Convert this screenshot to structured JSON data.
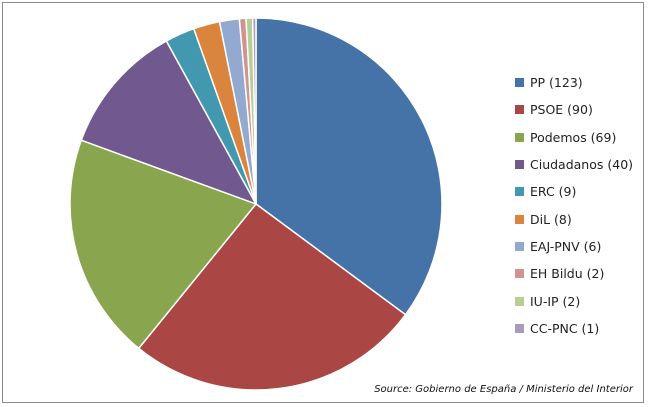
{
  "chart_data": {
    "type": "pie",
    "title": "",
    "categories": [
      "PP",
      "PSOE",
      "Podemos",
      "Ciudadanos",
      "ERC",
      "DiL",
      "EAJ-PNV",
      "EH Bildu",
      "IU-IP",
      "CC-PNC"
    ],
    "values": [
      123,
      90,
      69,
      40,
      9,
      8,
      6,
      2,
      2,
      1
    ],
    "legend_labels": [
      "PP (123)",
      "PSOE (90)",
      "Podemos (69)",
      "Ciudadanos (40)",
      "ERC (9)",
      "DiL (8)",
      "EAJ-PNV (6)",
      "EH Bildu (2)",
      "IU-IP (2)",
      "CC-PNC (1)"
    ],
    "colors": [
      "#4572A7",
      "#AA4643",
      "#89A54E",
      "#71588F",
      "#4198AF",
      "#DB843D",
      "#93A9CF",
      "#D19392",
      "#B9CD96",
      "#A99BBD"
    ],
    "legend_position": "right",
    "start_angle": "top",
    "direction": "clockwise",
    "source": "Source: Gobierno de España / Ministerio del Interior"
  }
}
